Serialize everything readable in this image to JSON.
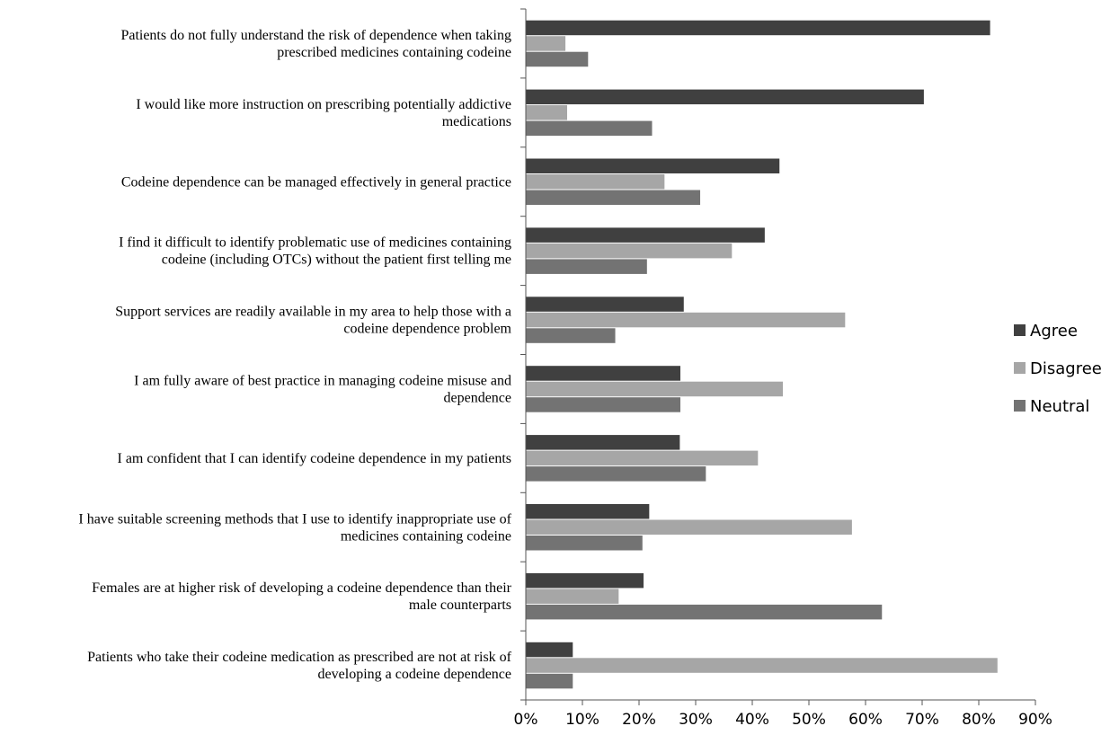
{
  "chart_data": {
    "type": "bar",
    "orientation": "horizontal",
    "categories": [
      [
        "Patients do not fully understand the risk of dependence when taking",
        "prescribed medicines containing codeine"
      ],
      [
        "I would like more instruction on prescribing potentially addictive",
        "medications"
      ],
      [
        "Codeine dependence can be managed effectively in general practice"
      ],
      [
        "I find it difficult to identify problematic use of medicines containing",
        "codeine (including OTCs) without the patient first telling me"
      ],
      [
        "Support services are readily available in my area to help those with a",
        "codeine dependence problem"
      ],
      [
        "I am fully aware of best practice in managing codeine misuse and",
        "dependence"
      ],
      [
        "I am confident that I can identify codeine dependence in my patients"
      ],
      [
        "I have suitable screening methods that I use to identify inappropriate use of",
        "medicines containing codeine"
      ],
      [
        "Females are at higher risk of developing a codeine dependence than their",
        "male counterparts"
      ],
      [
        "Patients who take their codeine medication as prescribed are not at risk of",
        "developing a codeine dependence"
      ]
    ],
    "series": [
      {
        "name": "Agree",
        "color": "#404040",
        "values": [
          82,
          70.3,
          44.8,
          42.2,
          27.9,
          27.3,
          27.2,
          21.8,
          20.8,
          8.3
        ]
      },
      {
        "name": "Disagree",
        "color": "#a6a6a6",
        "values": [
          7,
          7.3,
          24.5,
          36.4,
          56.4,
          45.4,
          41,
          57.6,
          16.4,
          83.3
        ]
      },
      {
        "name": "Neutral",
        "color": "#737373",
        "values": [
          11,
          22.3,
          30.8,
          21.4,
          15.8,
          27.3,
          31.8,
          20.6,
          62.9,
          8.3
        ]
      }
    ],
    "xlim": [
      0,
      90
    ],
    "xticks": [
      "0%",
      "10%",
      "20%",
      "30%",
      "40%",
      "50%",
      "60%",
      "70%",
      "80%",
      "90%"
    ],
    "grid": false,
    "legend_position": "right"
  }
}
